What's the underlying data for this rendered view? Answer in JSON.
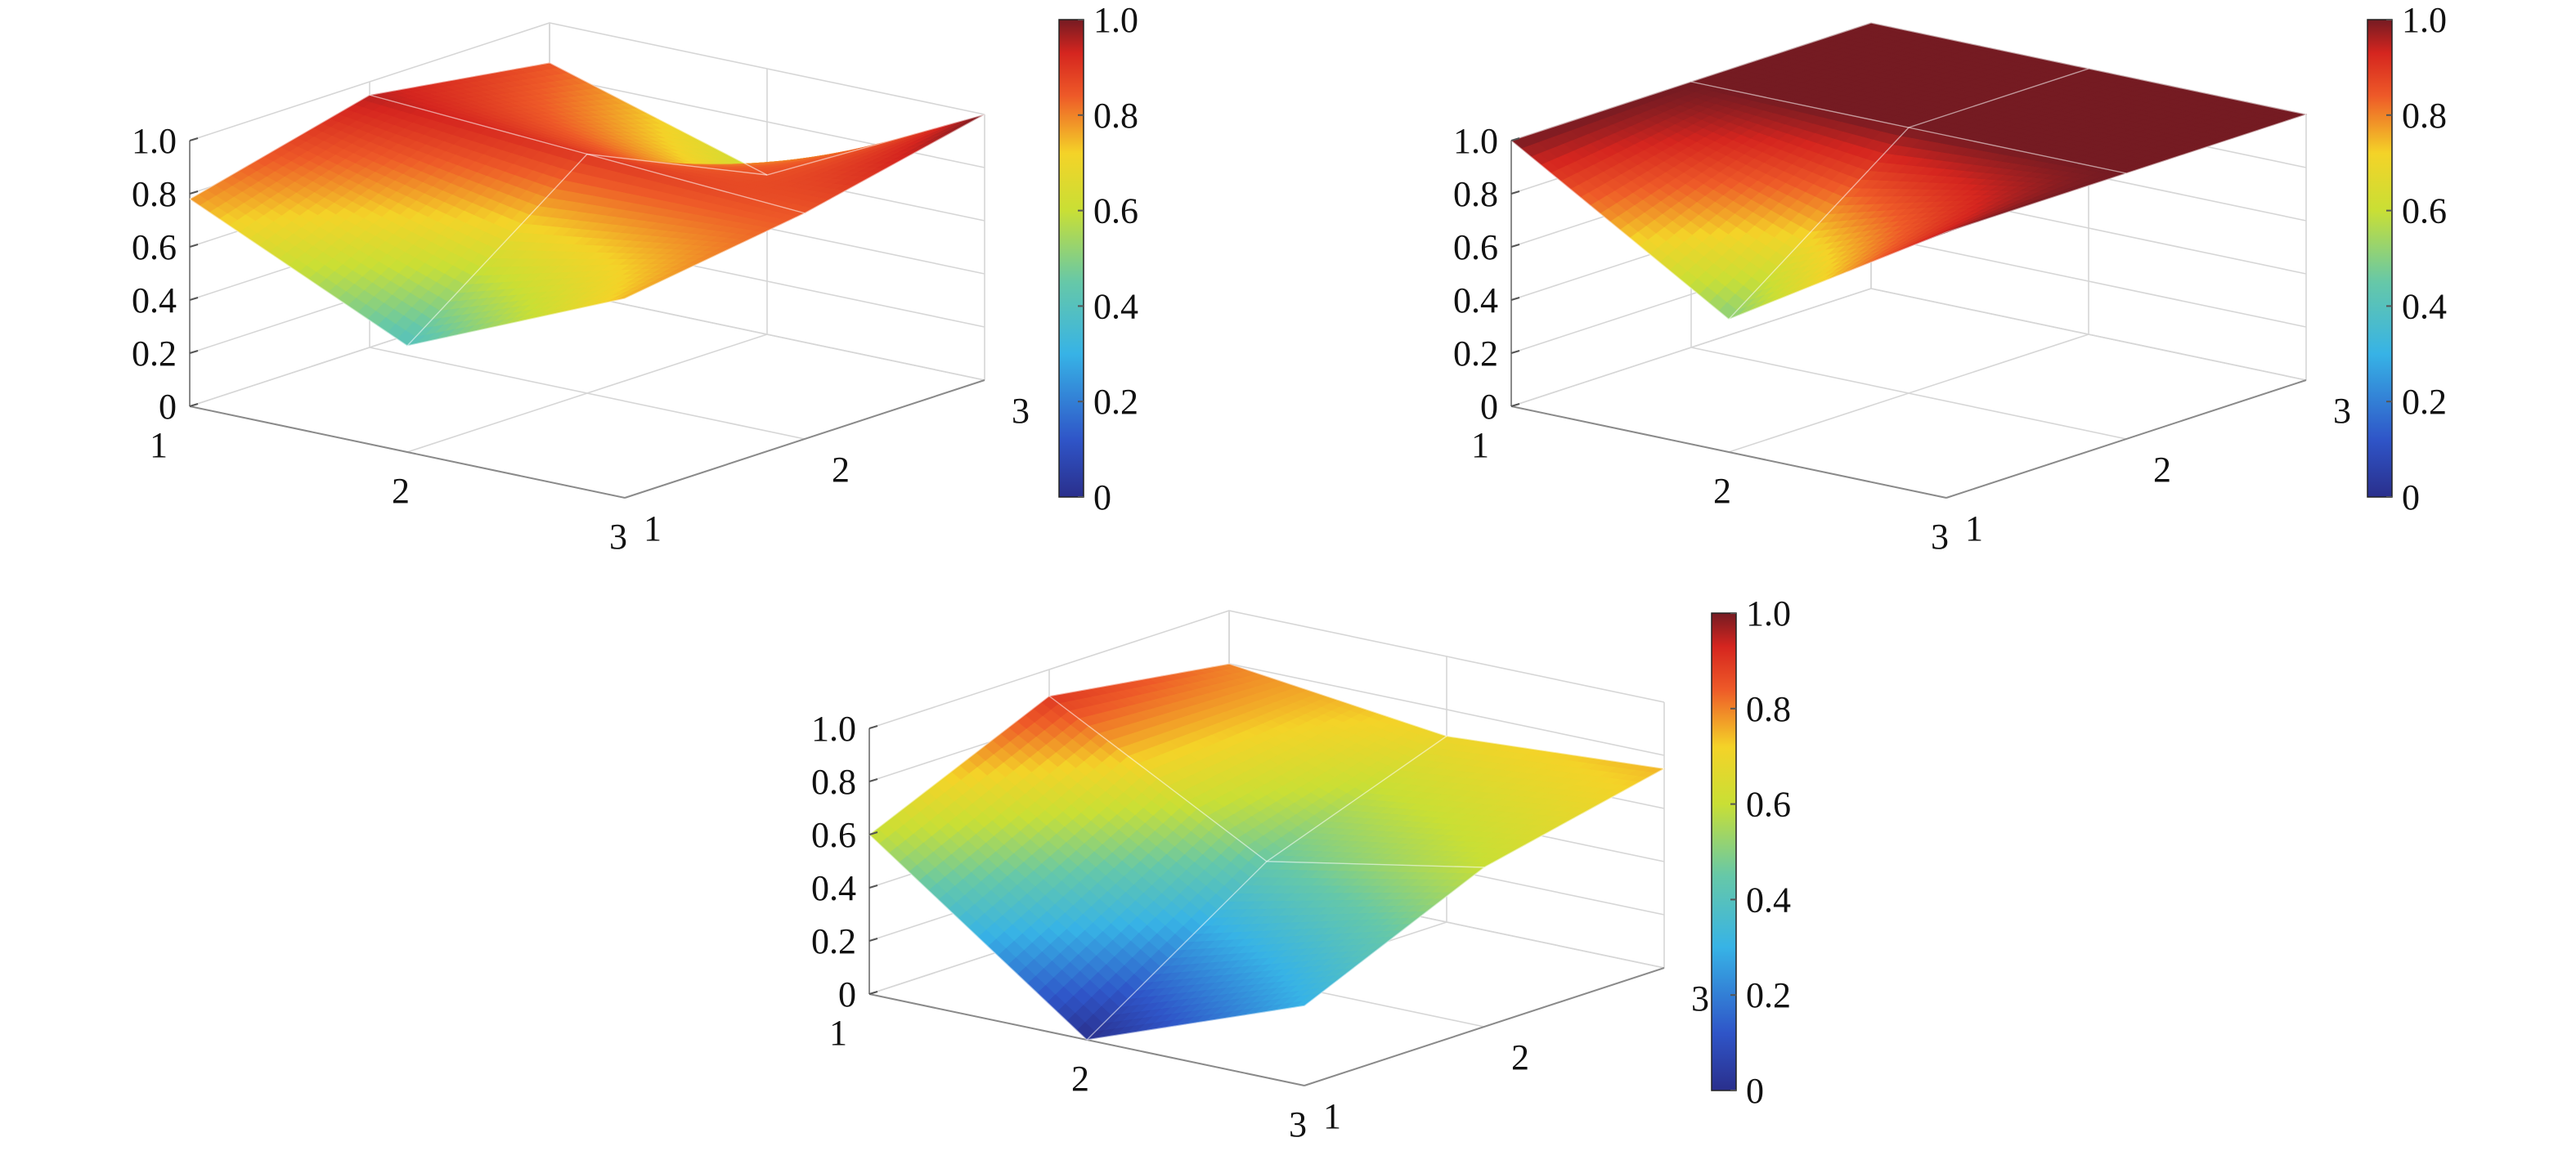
{
  "chart_data": [
    {
      "type": "surface",
      "x": [
        1,
        2,
        3
      ],
      "y": [
        1,
        2,
        3
      ],
      "z": [
        [
          0.78,
          0.95,
          0.85
        ],
        [
          0.4,
          0.9,
          0.6
        ],
        [
          0.75,
          0.85,
          1.0
        ]
      ],
      "zlim": [
        0,
        1.0
      ],
      "z_ticks": [
        "0",
        "0.2",
        "0.4",
        "0.6",
        "0.8",
        "1.0"
      ],
      "x_ticks": [
        "1",
        "2",
        "3"
      ],
      "y_ticks": [
        "1",
        "2",
        "3"
      ],
      "colorbar": {
        "range": [
          0,
          1.0
        ],
        "ticks": [
          "0",
          "0.2",
          "0.4",
          "0.6",
          "0.8",
          "1.0"
        ]
      },
      "colormap": "jet",
      "grid": true
    },
    {
      "type": "surface",
      "x": [
        1,
        2,
        3
      ],
      "y": [
        1,
        2,
        3
      ],
      "z": [
        [
          1.0,
          1.0,
          1.0
        ],
        [
          0.5,
          1.0,
          1.0
        ],
        [
          1.0,
          1.0,
          1.0
        ]
      ],
      "zlim": [
        0,
        1.0
      ],
      "z_ticks": [
        "0",
        "0.2",
        "0.4",
        "0.6",
        "0.8",
        "1.0"
      ],
      "x_ticks": [
        "1",
        "2",
        "3"
      ],
      "y_ticks": [
        "1",
        "2",
        "3"
      ],
      "colorbar": {
        "range": [
          0,
          1.0
        ],
        "ticks": [
          "0",
          "0.2",
          "0.4",
          "0.6",
          "0.8",
          "1.0"
        ]
      },
      "colormap": "jet",
      "grid": true
    },
    {
      "type": "surface",
      "x": [
        1,
        2,
        3
      ],
      "y": [
        1,
        2,
        3
      ],
      "z": [
        [
          0.6,
          0.9,
          0.8
        ],
        [
          0.0,
          0.45,
          0.7
        ],
        [
          0.3,
          0.6,
          0.75
        ]
      ],
      "zlim": [
        0,
        1.0
      ],
      "z_ticks": [
        "0",
        "0.2",
        "0.4",
        "0.6",
        "0.8",
        "1.0"
      ],
      "x_ticks": [
        "1",
        "2",
        "3"
      ],
      "y_ticks": [
        "1",
        "2",
        "3"
      ],
      "colorbar": {
        "range": [
          0,
          1.0
        ],
        "ticks": [
          "0",
          "0.2",
          "0.4",
          "0.6",
          "0.8",
          "1.0"
        ]
      },
      "colormap": "jet",
      "grid": true
    }
  ]
}
